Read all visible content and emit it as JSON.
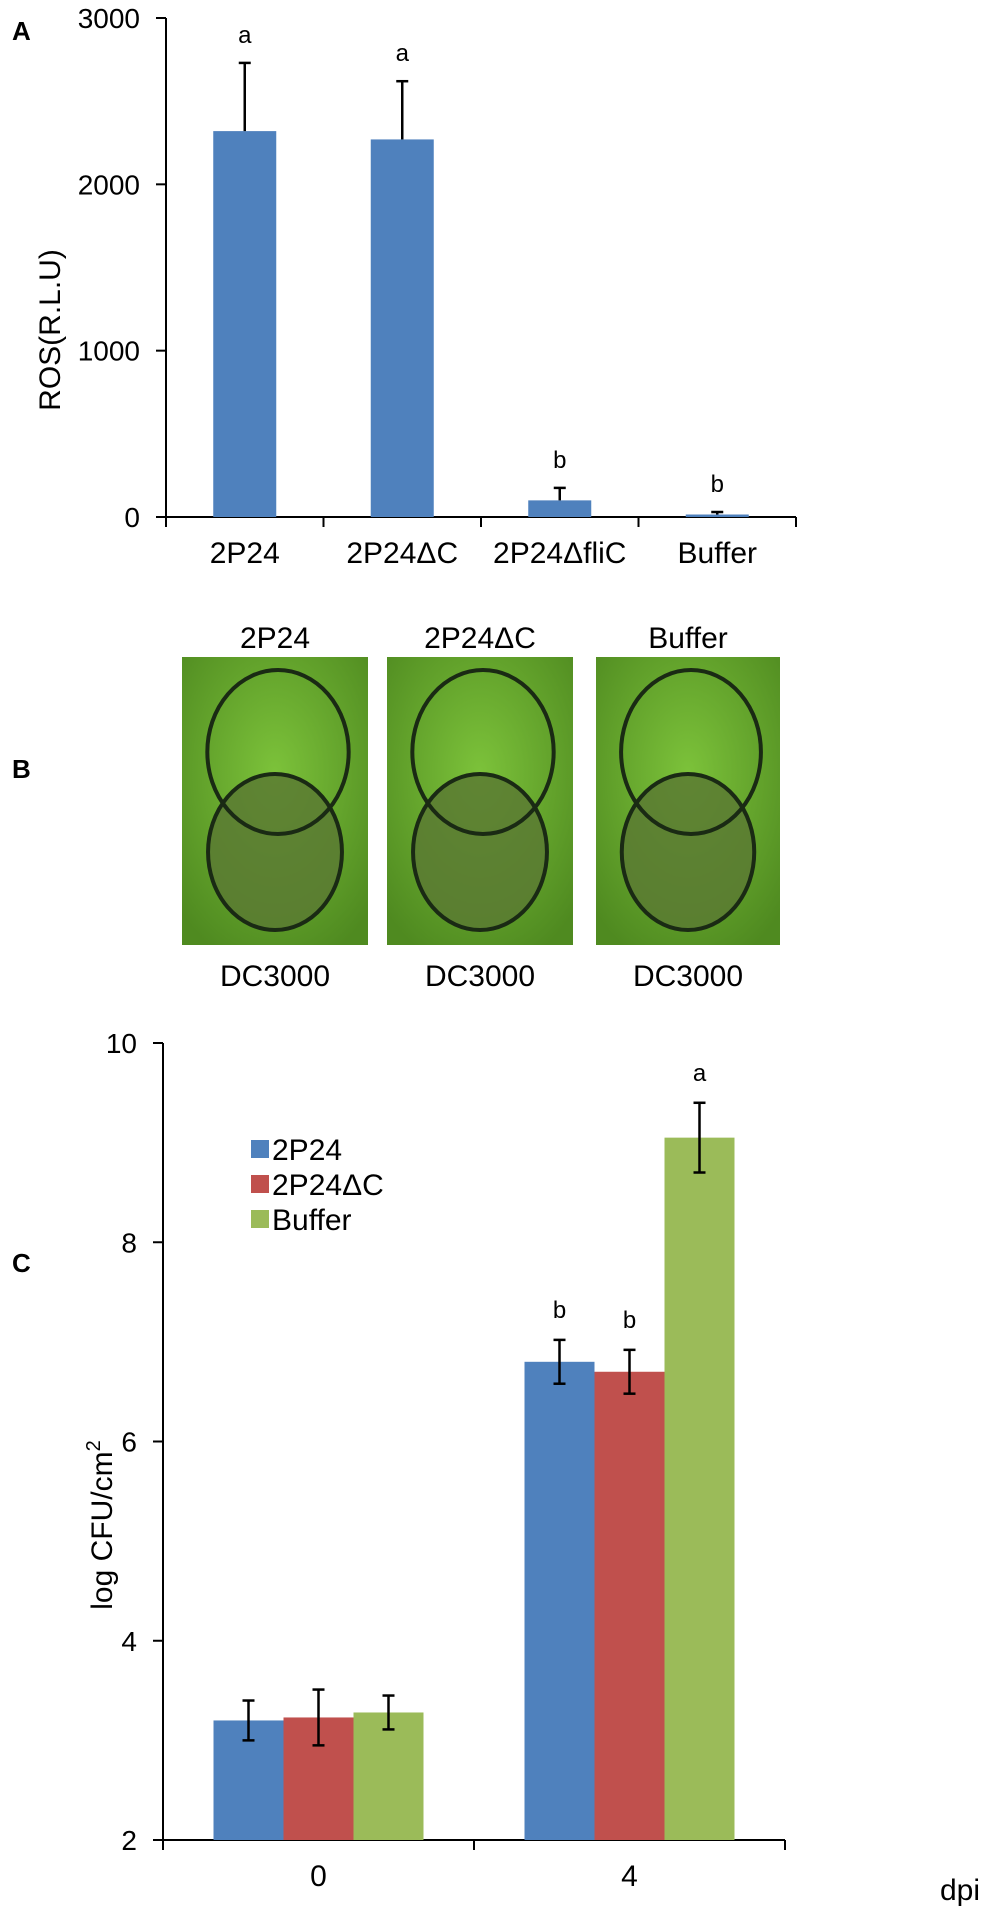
{
  "panels": {
    "a": {
      "letter": "A"
    },
    "b": {
      "letter": "B"
    },
    "c": {
      "letter": "C"
    }
  },
  "photos": {
    "leaves": [
      {
        "top_label": "2P24",
        "bottom_label": "DC3000"
      },
      {
        "top_label": "2P24ΔC",
        "bottom_label": "DC3000"
      },
      {
        "top_label": "Buffer",
        "bottom_label": "DC3000"
      }
    ],
    "colors": {
      "leaf": "#7cc23a",
      "leaf_dark": "#4f8a20",
      "treated": "#5b7a33",
      "ring": "#1a2a14"
    }
  },
  "chart_data": [
    {
      "type": "bar",
      "ylabel": "ROS(R.L.U)",
      "xlabel": "",
      "ylim": [
        0,
        3000
      ],
      "yticks": [
        0,
        1000,
        2000,
        3000
      ],
      "categories": [
        "2P24",
        "2P24ΔC",
        "2P24ΔfliC",
        "Buffer"
      ],
      "values": [
        2320,
        2270,
        100,
        15
      ],
      "errors": [
        410,
        350,
        75,
        15
      ],
      "significance": [
        "a",
        "a",
        "b",
        "b"
      ],
      "color": "#4f81bd",
      "grid": false
    },
    {
      "type": "bar",
      "ylabel": "log CFU/cm",
      "ylabel_sup": "2",
      "xlabel": "dpi",
      "ylim": [
        2,
        10
      ],
      "yticks": [
        2,
        4,
        6,
        8,
        10
      ],
      "categories": [
        "0",
        "4"
      ],
      "series": [
        {
          "name": "2P24",
          "values": [
            3.2,
            6.8
          ],
          "errors": [
            0.2,
            0.22
          ],
          "significance": [
            "",
            "b"
          ],
          "color": "#4f81bd"
        },
        {
          "name": "2P24ΔC",
          "values": [
            3.23,
            6.7
          ],
          "errors": [
            0.28,
            0.22
          ],
          "significance": [
            "",
            "b"
          ],
          "color": "#c0504d"
        },
        {
          "name": "Buffer",
          "values": [
            3.28,
            9.05
          ],
          "errors": [
            0.17,
            0.35
          ],
          "significance": [
            "",
            "a"
          ],
          "color": "#9bbb59"
        }
      ],
      "legend": "upper-left",
      "grid": false
    }
  ]
}
